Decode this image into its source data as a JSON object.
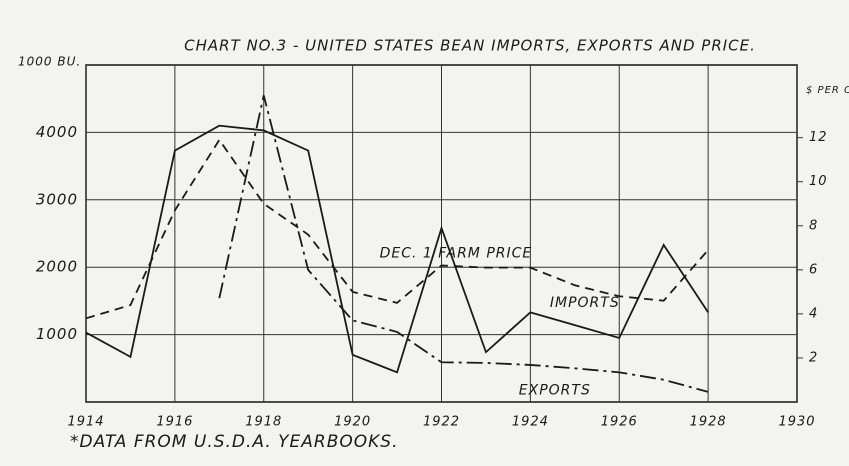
{
  "chart_data": {
    "type": "line",
    "title": "CHART NO.3 - UNITED STATES BEAN IMPORTS, EXPORTS AND PRICE.",
    "y_label": "1000 BU.",
    "y2_label": "$ PER CWT.",
    "footnote": "*DATA FROM U.S.D.A. YEARBOOKS.",
    "x": [
      1914,
      1915,
      1916,
      1917,
      1918,
      1919,
      1920,
      1921,
      1922,
      1923,
      1924,
      1925,
      1926,
      1927,
      1928
    ],
    "xlim": [
      1914,
      1930
    ],
    "xticks": [
      1914,
      1916,
      1918,
      1920,
      1922,
      1924,
      1926,
      1928,
      1930
    ],
    "ylim": [
      0,
      5000
    ],
    "yticks": [
      1000,
      2000,
      3000,
      4000
    ],
    "y2lim": [
      0,
      15.3
    ],
    "y2ticks": [
      2,
      4,
      6,
      8,
      10,
      12
    ],
    "grid": true,
    "series": [
      {
        "name": "IMPORTS",
        "color": "#1a1a1a",
        "style": "solid",
        "values": [
          1030,
          670,
          3730,
          4100,
          4030,
          3730,
          700,
          440,
          2580,
          740,
          1330,
          1140,
          950,
          2330,
          1330
        ]
      },
      {
        "name": "EXPORTS",
        "color": "#1a1a1a",
        "style": "dashdot",
        "values": [
          null,
          null,
          null,
          1540,
          4550,
          1960,
          1210,
          1040,
          590,
          580,
          550,
          500,
          440,
          330,
          150
        ]
      },
      {
        "name": "DEC. 1 FARM PRICE",
        "color": "#1a1a1a",
        "style": "dashed",
        "axis": "y2",
        "values": [
          3.8,
          4.4,
          8.7,
          11.9,
          9.0,
          7.6,
          5.0,
          4.5,
          6.2,
          6.1,
          6.1,
          5.3,
          4.8,
          4.6,
          6.9
        ]
      }
    ]
  }
}
